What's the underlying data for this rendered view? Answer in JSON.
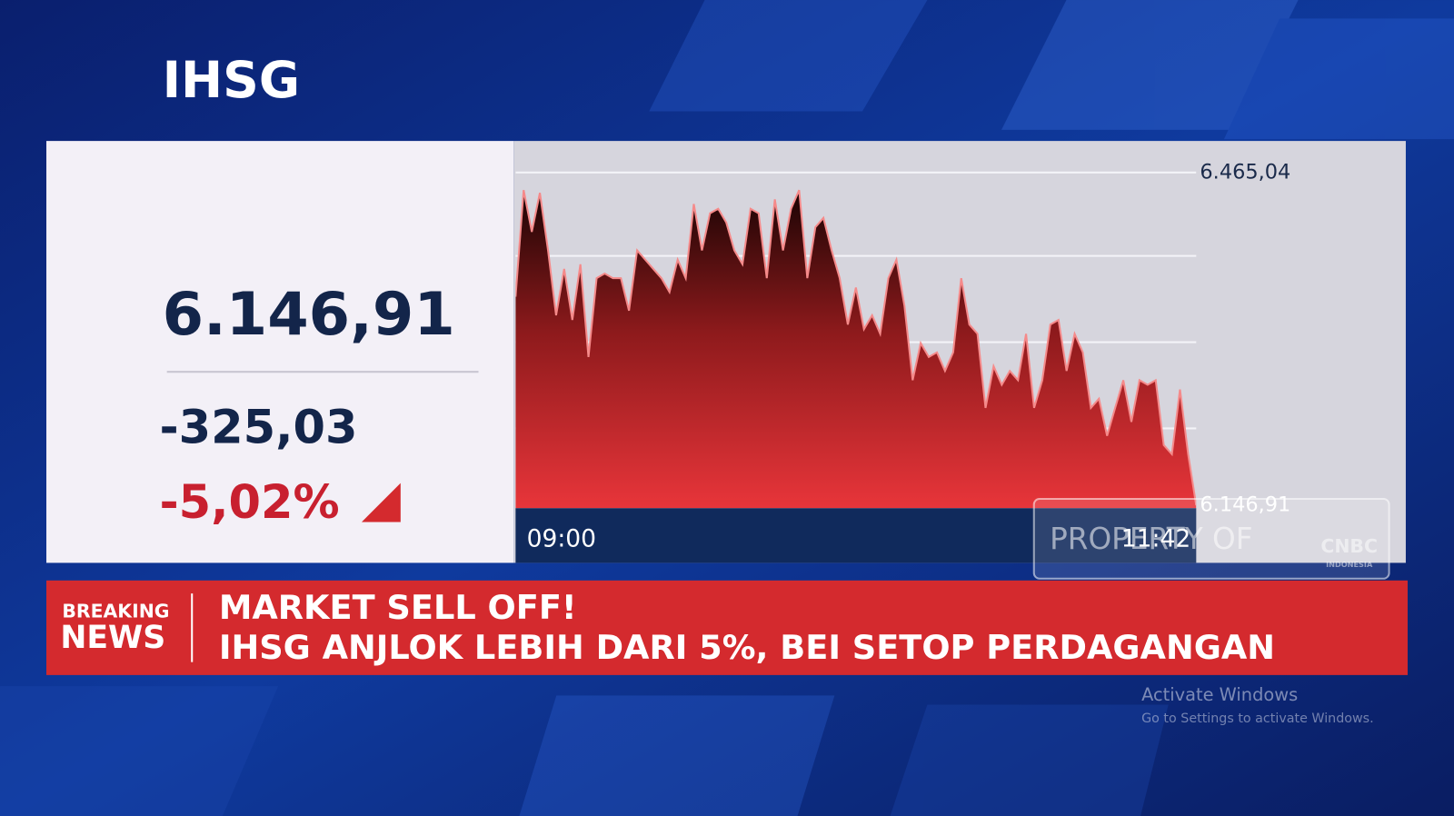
{
  "header": {
    "title": "IHSG"
  },
  "quote": {
    "last": "6.146,91",
    "change": "-325,03",
    "change_percent": "-5,02%"
  },
  "chart_data": {
    "type": "area",
    "categories": [
      "09:00",
      null,
      null,
      null,
      null,
      null,
      null,
      null,
      null,
      null,
      null,
      null,
      null,
      null,
      null,
      null,
      null,
      null,
      null,
      null,
      null,
      null,
      null,
      null,
      null,
      null,
      null,
      null,
      null,
      null,
      null,
      null,
      null,
      null,
      null,
      null,
      null,
      null,
      null,
      null,
      null,
      null,
      null,
      null,
      null,
      null,
      null,
      null,
      null,
      null,
      null,
      null,
      null,
      null,
      null,
      null,
      null,
      null,
      null,
      null,
      null,
      null,
      null,
      null,
      null,
      null,
      null,
      null,
      null,
      null,
      null,
      null,
      null,
      null,
      null,
      null,
      null,
      null,
      null,
      null,
      null,
      null,
      null,
      null,
      "11:42"
    ],
    "values": [
      6346.3,
      6448.2,
      6408.3,
      6445.5,
      6390.6,
      6328.6,
      6372.9,
      6324.1,
      6377.3,
      6288.7,
      6364.0,
      6368.4,
      6364.0,
      6364.0,
      6333.0,
      6390.6,
      6381.7,
      6372.9,
      6364.0,
      6350.7,
      6381.7,
      6364.0,
      6434.9,
      6390.6,
      6426.0,
      6430.4,
      6417.2,
      6390.6,
      6377.3,
      6430.4,
      6426.0,
      6364.0,
      6439.3,
      6390.6,
      6430.4,
      6448.2,
      6364.0,
      6412.7,
      6421.6,
      6390.6,
      6364.0,
      6319.7,
      6355.1,
      6315.3,
      6328.6,
      6310.8,
      6364.0,
      6381.7,
      6337.4,
      6266.5,
      6302.0,
      6288.7,
      6293.1,
      6275.4,
      6293.1,
      6364.0,
      6319.7,
      6310.8,
      6240.0,
      6279.8,
      6262.1,
      6275.4,
      6266.5,
      6310.8,
      6240.0,
      6266.5,
      6319.7,
      6324.1,
      6275.4,
      6310.8,
      6293.1,
      6240.0,
      6248.8,
      6213.4,
      6240.0,
      6266.5,
      6226.7,
      6266.5,
      6262.1,
      6266.5,
      6204.5,
      6195.7,
      6257.7,
      6195.7,
      6146.91
    ],
    "color": "#e8353a",
    "ylim": [
      6144.25,
      6492.5
    ],
    "yticks": [
      {
        "value": 6465.04,
        "label": "6.465,04"
      },
      {
        "value": 6146.91,
        "label": "6.146,91"
      }
    ],
    "grid": true
  },
  "ticker": {
    "label_top": "BREAKING",
    "label_bottom": "NEWS",
    "headline_1": "MARKET SELL OFF!",
    "headline_2": "IHSG ANJLOK LEBIH DARI 5%, BEI SETOP PERDAGANGAN"
  },
  "watermark": {
    "text": "PROPERTY OF",
    "logo": "CNBC",
    "logo_sub": "INDONESIA"
  },
  "os_notice": {
    "title": "Activate Windows",
    "subtitle": "Go to Settings to activate Windows."
  }
}
